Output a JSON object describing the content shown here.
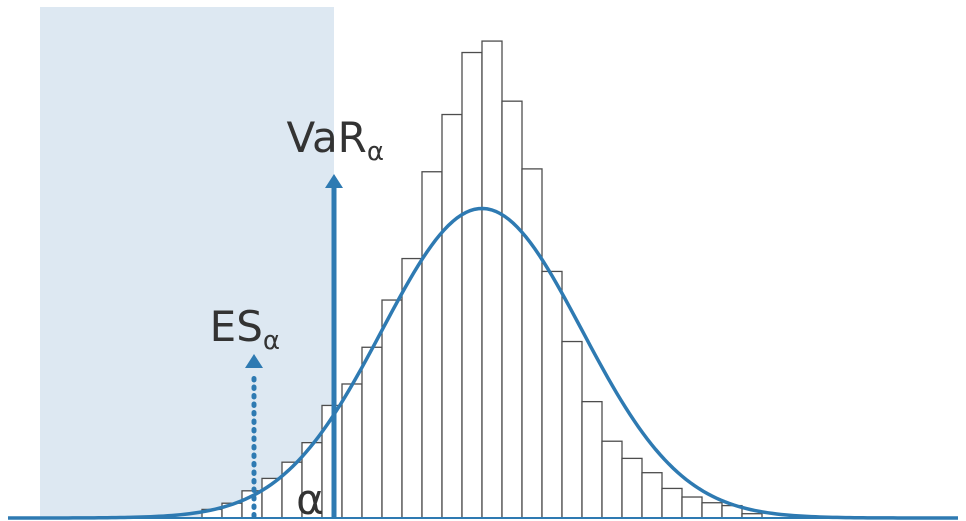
{
  "chart_data": {
    "type": "bar",
    "title": "",
    "xlabel": "",
    "ylabel": "",
    "grid": false,
    "legend": "none",
    "bin_count": 28,
    "histogram_heights": [
      1.8,
      3.1,
      5.7,
      8.3,
      11.7,
      15.8,
      23.6,
      28.1,
      35.8,
      45.7,
      54.4,
      72.6,
      84.6,
      97.6,
      100,
      87.4,
      73.2,
      51.7,
      37.0,
      24.4,
      16.1,
      12.5,
      9.5,
      6.2,
      4.4,
      3.2,
      2.6,
      0.9
    ],
    "histogram_range": [
      0,
      28
    ],
    "normal_curve": {
      "mean": 14.0,
      "sd": 5.0,
      "peak": 64.9
    },
    "var_position": 6.6,
    "es_position": 2.6,
    "tail_shade_range": [
      -8.1,
      6.6
    ],
    "y_max": 104,
    "labels": {
      "var": {
        "base": "VaR",
        "sub": "α"
      },
      "es": {
        "base": "ES",
        "sub": "α"
      },
      "alpha": "α"
    },
    "colors": {
      "accent": "#2e7ab2",
      "tail_shade": "#dde8f2",
      "bar_fill": "#ffffff",
      "bar_stroke": "#4d4d4d",
      "text": "#333333"
    }
  }
}
